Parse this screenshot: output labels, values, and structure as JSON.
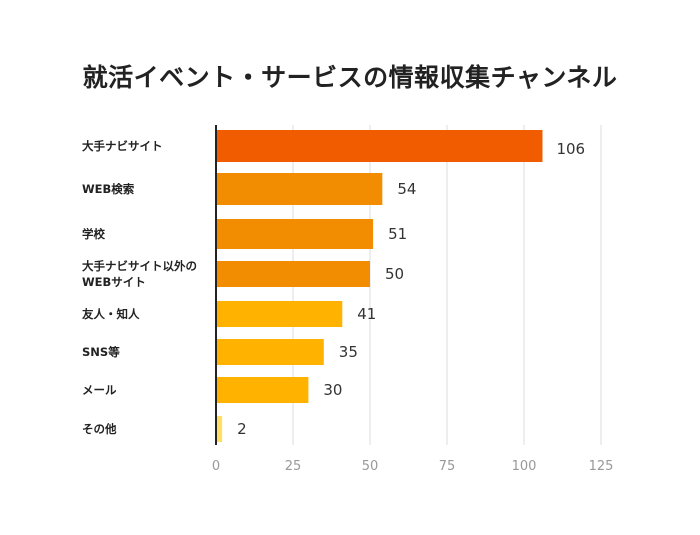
{
  "chart_data": {
    "type": "bar",
    "orientation": "horizontal",
    "title": "就活イベント・サービスの情報収集チャンネル",
    "categories": [
      [
        "大手ナビサイト"
      ],
      [
        "WEB検索"
      ],
      [
        "学校"
      ],
      [
        "大手ナビサイト以外の",
        "WEBサイト"
      ],
      [
        "友人・知人"
      ],
      [
        "SNS等"
      ],
      [
        "メール"
      ],
      [
        "その他"
      ]
    ],
    "values": [
      106,
      54,
      51,
      50,
      41,
      35,
      30,
      2
    ],
    "colors": [
      "#F25C00",
      "#F28C00",
      "#F28C00",
      "#F28C00",
      "#FFB300",
      "#FFB300",
      "#FFB300",
      "#FFE066"
    ],
    "highlight_label_color": "#F25C00",
    "xlim": [
      0,
      125
    ],
    "xticks": [
      "0",
      "25",
      "50",
      "75",
      "100",
      "125"
    ],
    "grid": true,
    "xlabel": "",
    "ylabel": ""
  }
}
